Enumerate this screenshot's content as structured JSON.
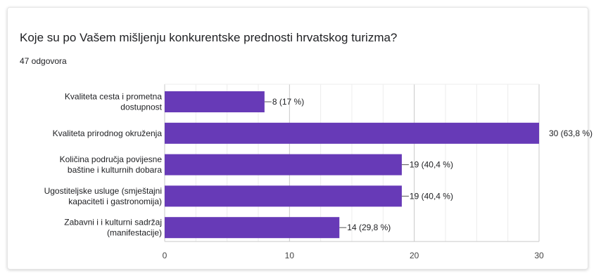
{
  "question": {
    "title": "Koje su po Vašem mišljenju konkurentske prednosti hrvatskog turizma?",
    "responses": "47 odgovora"
  },
  "colors": {
    "bar": "#673ab7",
    "grid": "#d9d9d9",
    "text": "#202124",
    "axis_text": "#444444"
  },
  "chart_data": {
    "type": "bar",
    "orientation": "horizontal",
    "categories": [
      [
        "Kvaliteta cesta i prometna",
        "dostupnost"
      ],
      [
        "Kvaliteta prirodnog okruženja"
      ],
      [
        "Količina područja povijesne",
        "baštine i kulturnih dobara"
      ],
      [
        "Ugostiteljske usluge (smještajni",
        "kapaciteti i gastronomija)"
      ],
      [
        "Zabavni i i kulturni sadržaj",
        "(manifestacije)"
      ]
    ],
    "values": [
      8,
      30,
      19,
      19,
      14
    ],
    "data_labels": [
      "8 (17 %)",
      "30 (63,8 %)",
      "19 (40,4 %)",
      "19 (40,4 %)",
      "14 (29,8 %)"
    ],
    "xlim": [
      0,
      30
    ],
    "x_ticks": [
      0,
      10,
      20,
      30
    ],
    "grid": true
  }
}
